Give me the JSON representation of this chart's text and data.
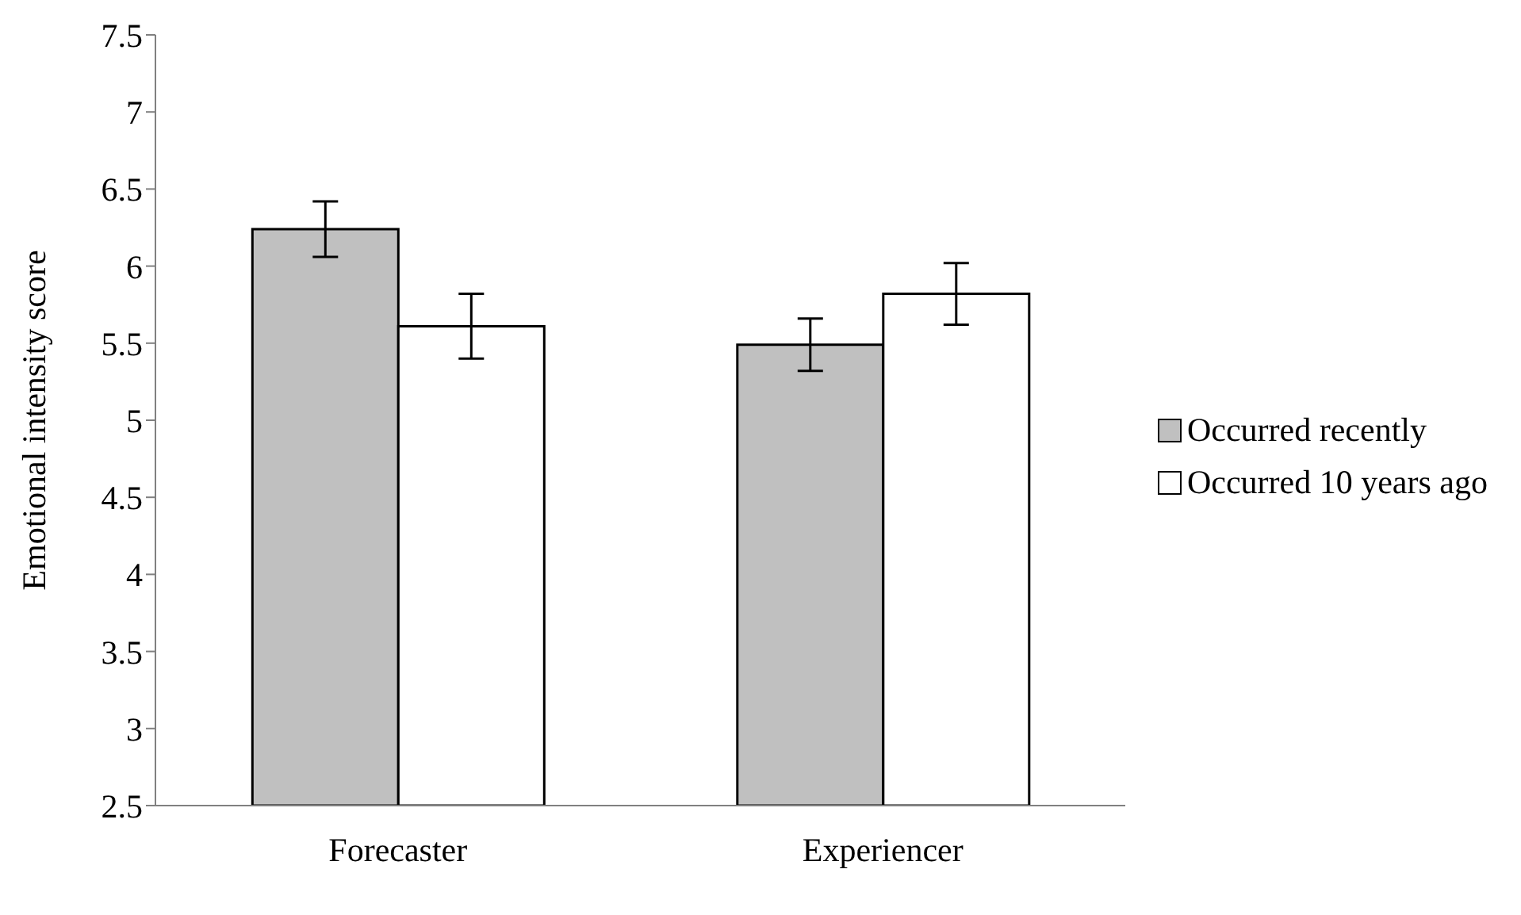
{
  "chart_data": {
    "type": "bar",
    "ylabel": "Emotional intensity score",
    "categories": [
      "Forecaster",
      "Experiencer"
    ],
    "series": [
      {
        "name": "Occurred recently",
        "color": "#c0c0c0",
        "values": [
          6.24,
          5.49
        ],
        "errors": [
          0.18,
          0.17
        ]
      },
      {
        "name": "Occurred 10 years ago",
        "color": "#ffffff",
        "values": [
          5.61,
          5.82
        ],
        "errors": [
          0.21,
          0.2
        ]
      }
    ],
    "ylim": [
      2.5,
      7.5
    ],
    "yticks": [
      2.5,
      3,
      3.5,
      4,
      4.5,
      5,
      5.5,
      6,
      6.5,
      7,
      7.5
    ],
    "grid": false,
    "legend": "right"
  }
}
